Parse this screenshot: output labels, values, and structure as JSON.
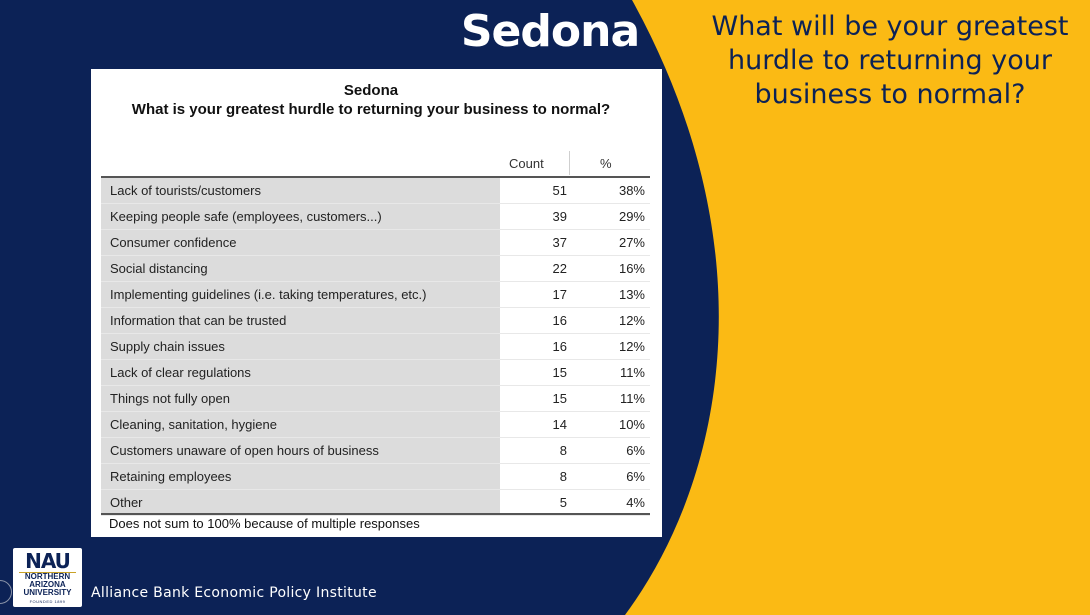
{
  "slide": {
    "title": "Sedona",
    "question": "What will be your greatest hurdle to returning your business to normal?",
    "colors": {
      "navy": "#0c2256",
      "gold": "#fbba14",
      "white": "#ffffff"
    }
  },
  "table": {
    "title": "Sedona",
    "subtitle": "What is your greatest hurdle to returning your business to normal?",
    "col_count": "Count",
    "col_pct": "%",
    "rows": [
      {
        "label": "Lack of tourists/customers",
        "count": "51",
        "pct": "38%"
      },
      {
        "label": "Keeping people safe (employees, customers...)",
        "count": "39",
        "pct": "29%"
      },
      {
        "label": "Consumer confidence",
        "count": "37",
        "pct": "27%"
      },
      {
        "label": "Social distancing",
        "count": "22",
        "pct": "16%"
      },
      {
        "label": "Implementing guidelines (i.e. taking temperatures, etc.)",
        "count": "17",
        "pct": "13%"
      },
      {
        "label": "Information that can be trusted",
        "count": "16",
        "pct": "12%"
      },
      {
        "label": "Supply chain issues",
        "count": "16",
        "pct": "12%"
      },
      {
        "label": "Lack of clear regulations",
        "count": "15",
        "pct": "11%"
      },
      {
        "label": "Things not fully open",
        "count": "15",
        "pct": "11%"
      },
      {
        "label": "Cleaning, sanitation, hygiene",
        "count": "14",
        "pct": "10%"
      },
      {
        "label": "Customers unaware of open hours of business",
        "count": "8",
        "pct": "6%"
      },
      {
        "label": "Retaining employees",
        "count": "8",
        "pct": "6%"
      },
      {
        "label": "Other",
        "count": "5",
        "pct": "4%"
      }
    ],
    "footnote": "Does not sum to 100% because of multiple responses"
  },
  "footer": {
    "logo_abbr": "NAU",
    "logo_line1": "NORTHERN",
    "logo_line2": "ARIZONA",
    "logo_line3": "UNIVERSITY",
    "logo_founded": "FOUNDED 1899",
    "institute": "Alliance Bank Economic Policy Institute"
  }
}
